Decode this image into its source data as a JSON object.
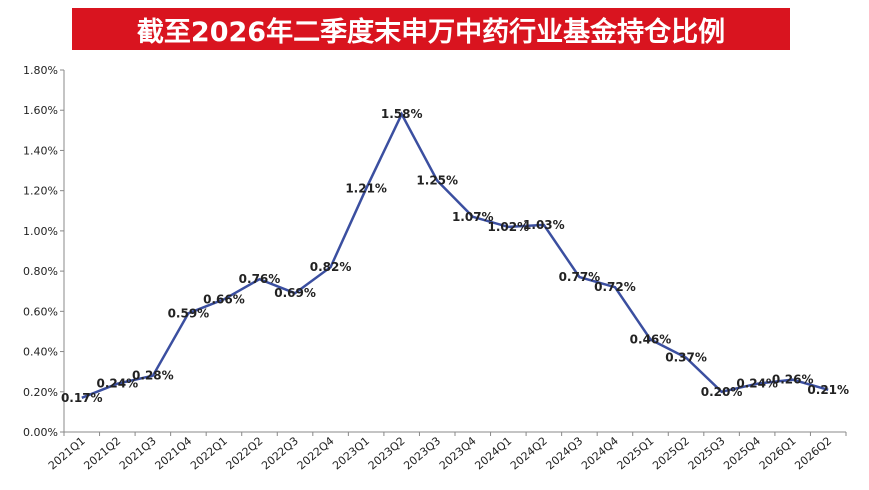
{
  "chart_data": {
    "type": "line",
    "title": "截至2026年二季度末申万中药行业基金持仓比例",
    "categories": [
      "2021Q1",
      "2021Q2",
      "2021Q3",
      "2021Q4",
      "2022Q1",
      "2022Q2",
      "2022Q3",
      "2022Q4",
      "2023Q1",
      "2023Q2",
      "2023Q3",
      "2023Q4",
      "2024Q1",
      "2024Q2",
      "2024Q3",
      "2024Q4",
      "2025Q1",
      "2025Q2",
      "2025Q3",
      "2025Q4",
      "2026Q1",
      "2026Q2"
    ],
    "values": [
      0.17,
      0.24,
      0.28,
      0.59,
      0.66,
      0.76,
      0.69,
      0.82,
      1.21,
      1.58,
      1.25,
      1.07,
      1.02,
      1.03,
      0.77,
      0.72,
      0.46,
      0.37,
      0.2,
      0.24,
      0.26,
      0.21
    ],
    "data_labels": [
      "0.17%",
      "0.24%",
      "0.28%",
      "0.59%",
      "0.66%",
      "0.76%",
      "0.69%",
      "0.82%",
      "1.21%",
      "1.58%",
      "1.25%",
      "1.07%",
      "1.02%",
      "1.03%",
      "0.77%",
      "0.72%",
      "0.46%",
      "0.37%",
      "0.20%",
      "0.24%",
      "0.26%",
      "0.21%"
    ],
    "y_ticks": [
      "0.00%",
      "0.20%",
      "0.40%",
      "0.60%",
      "0.80%",
      "1.00%",
      "1.20%",
      "1.40%",
      "1.60%",
      "1.80%"
    ],
    "ylim": [
      0,
      1.8
    ],
    "xlabel": "",
    "ylabel": "",
    "line_color": "#3b4fa0",
    "title_bg_color": "#d9141f",
    "grid": false,
    "legend": "none"
  }
}
